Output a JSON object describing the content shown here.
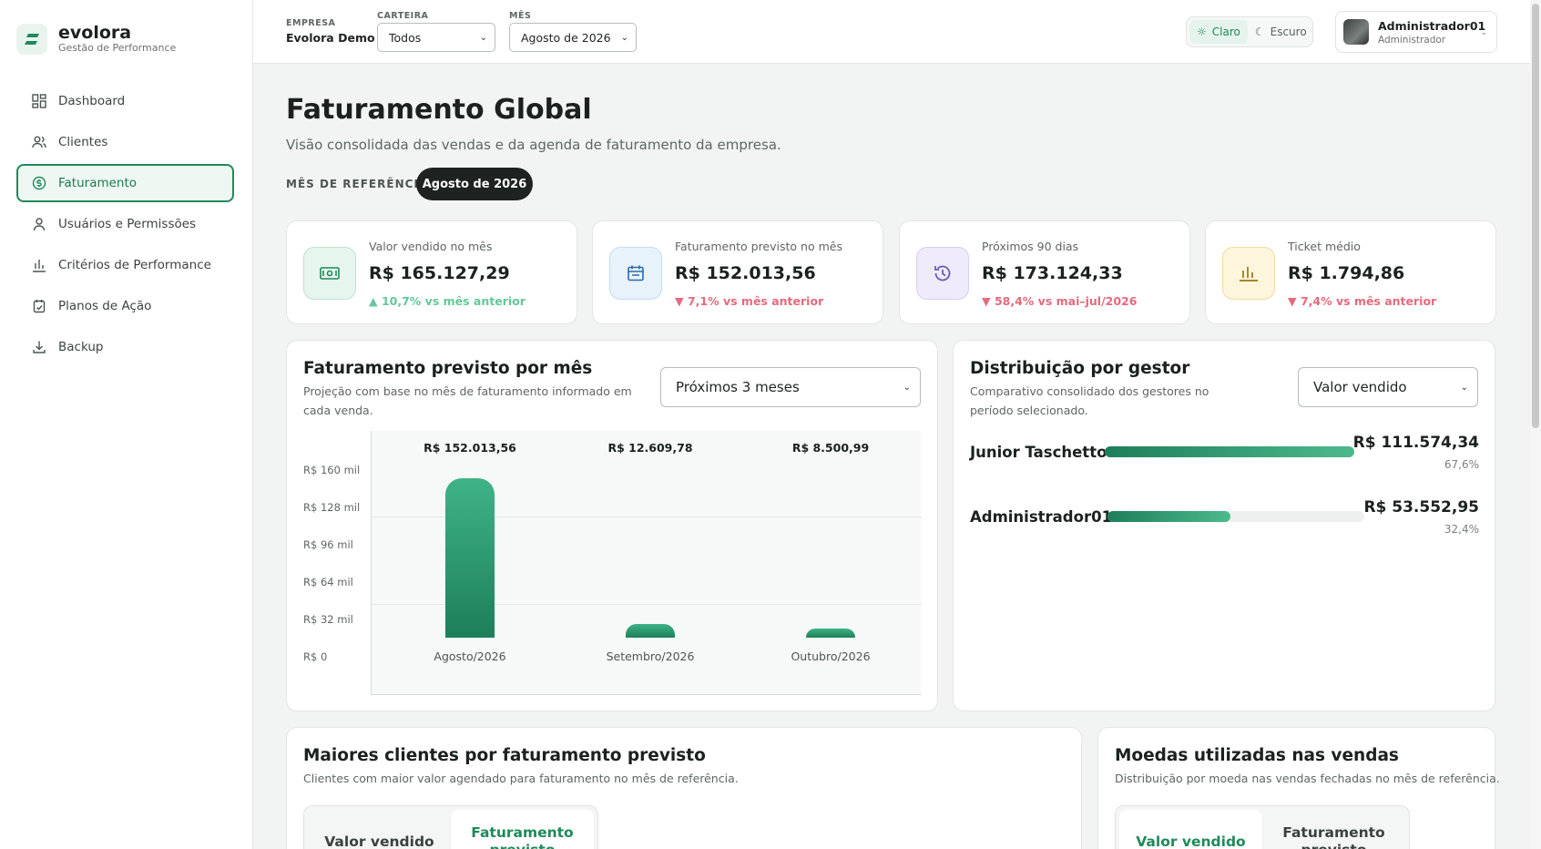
{
  "brand": {
    "name": "evolora",
    "subtitle": "Gestão de Performance"
  },
  "sidebar": {
    "items": [
      {
        "label": "Dashboard",
        "icon": "dashboard-icon"
      },
      {
        "label": "Clientes",
        "icon": "users-icon"
      },
      {
        "label": "Faturamento",
        "icon": "dollar-icon",
        "active": true
      },
      {
        "label": "Usuários e Permissões",
        "icon": "user-icon"
      },
      {
        "label": "Critérios de Performance",
        "icon": "bar-chart-icon"
      },
      {
        "label": "Planos de Ação",
        "icon": "clipboard-check-icon"
      },
      {
        "label": "Backup",
        "icon": "download-icon"
      }
    ]
  },
  "topbar": {
    "company_label": "EMPRESA",
    "company_value": "Evolora Demo",
    "wallet_label": "CARTEIRA",
    "wallet_value": "Todos",
    "month_label": "MÊS",
    "month_value": "Agosto de 2026",
    "theme_light": "Claro",
    "theme_dark": "Escuro",
    "user_name": "Administrador01",
    "user_role": "Administrador"
  },
  "page": {
    "title": "Faturamento Global",
    "subtitle": "Visão consolidada das vendas e da agenda de faturamento da empresa.",
    "ref_label": "MÊS DE REFERÊNCIA",
    "ref_value": "Agosto de 2026"
  },
  "kpis": [
    {
      "label": "Valor vendido no mês",
      "value": "R$ 165.127,29",
      "delta": "▲ 10,7% vs mês anterior",
      "trend": "up",
      "icon": "money-icon",
      "color": "#e6f5ee"
    },
    {
      "label": "Faturamento previsto no mês",
      "value": "R$ 152.013,56",
      "delta": "▼ 7,1% vs mês anterior",
      "trend": "down",
      "icon": "calendar-icon",
      "color": "#e8f2fb"
    },
    {
      "label": "Próximos 90 dias",
      "value": "R$ 173.124,33",
      "delta": "▼ 58,4% vs mai–jul/2026",
      "trend": "down",
      "icon": "history-icon",
      "color": "#efebfa"
    },
    {
      "label": "Ticket médio",
      "value": "R$ 1.794,86",
      "delta": "▼ 7,4% vs mês anterior",
      "trend": "down",
      "icon": "bar-chart-icon",
      "color": "#fdf5dc"
    }
  ],
  "forecast_card": {
    "title": "Faturamento previsto por mês",
    "subtitle": "Projeção com base no mês de faturamento informado em cada venda.",
    "range_select": "Próximos 3 meses"
  },
  "chart_data": {
    "type": "bar",
    "categories": [
      "Agosto/2026",
      "Setembro/2026",
      "Outubro/2026"
    ],
    "values": [
      152013.56,
      12609.78,
      8500.99
    ],
    "data_labels": [
      "R$ 152.013,56",
      "R$ 12.609,78",
      "R$ 8.500,99"
    ],
    "y_ticks": [
      "R$ 160 mil",
      "R$ 128 mil",
      "R$ 96 mil",
      "R$ 64 mil",
      "R$ 32 mil",
      "R$ 0"
    ],
    "ylim": [
      0,
      160000
    ],
    "bar_color": "#1f8a5b"
  },
  "gestor_card": {
    "title": "Distribuição por gestor",
    "subtitle": "Comparativo consolidado dos gestores no período selecionado.",
    "metric_select": "Valor vendido",
    "rows": [
      {
        "name": "Junior Taschetto",
        "value": "R$ 111.574,34",
        "pct": "67,6%",
        "share": 1.0
      },
      {
        "name": "Administrador01",
        "value": "R$ 53.552,95",
        "pct": "32,4%",
        "share": 0.48
      }
    ]
  },
  "top_clients_card": {
    "title": "Maiores clientes por faturamento previsto",
    "subtitle": "Clientes com maior valor agendado para faturamento no mês de referência.",
    "tab_sold": "Valor vendido",
    "tab_forecast": "Faturamento previsto"
  },
  "currency_card": {
    "title": "Moedas utilizadas nas vendas",
    "subtitle": "Distribuição por moeda nas vendas fechadas no mês de referência.",
    "tab_sold": "Valor vendido",
    "tab_forecast": "Faturamento previsto"
  }
}
